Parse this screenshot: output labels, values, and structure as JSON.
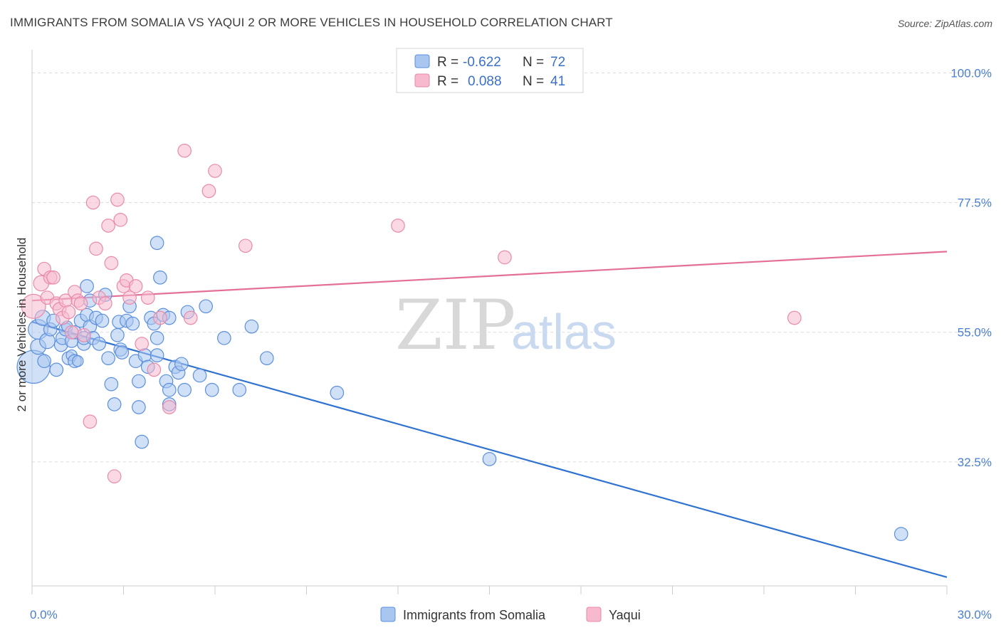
{
  "header": {
    "title": "IMMIGRANTS FROM SOMALIA VS YAQUI 2 OR MORE VEHICLES IN HOUSEHOLD CORRELATION CHART",
    "source": "Source: ZipAtlas.com"
  },
  "watermark": {
    "zip": "ZIP",
    "atlas": "atlas"
  },
  "legend_top": {
    "rows": [
      {
        "r_label": "R = ",
        "r_value": "-0.622",
        "n_label": "N = ",
        "n_value": "72",
        "color": "#a9c6f0"
      },
      {
        "r_label": "R = ",
        "r_value": "0.088",
        "n_label": "N = ",
        "n_value": "41",
        "color": "#f6b9cd"
      }
    ]
  },
  "chart_data": {
    "type": "scatter",
    "title": "IMMIGRANTS FROM SOMALIA VS YAQUI 2 OR MORE VEHICLES IN HOUSEHOLD CORRELATION CHART",
    "xlabel": "",
    "ylabel": "2 or more Vehicles in Household",
    "xlim": [
      0,
      30
    ],
    "ylim": [
      11,
      104
    ],
    "x_tick_labels": [
      {
        "value": 0,
        "label": "0.0%"
      },
      {
        "value": 30,
        "label": "30.0%"
      }
    ],
    "y_tick_labels": [
      {
        "value": 100,
        "label": "100.0%"
      },
      {
        "value": 77.5,
        "label": "77.5%"
      },
      {
        "value": 55,
        "label": "55.0%"
      },
      {
        "value": 32.5,
        "label": "32.5%"
      }
    ],
    "y_grid": [
      100,
      77.5,
      55,
      32.5
    ],
    "grid": true,
    "legend_position": "bottom",
    "series": [
      {
        "name": "Immigrants from Somalia",
        "color": "#5b8fdd",
        "fill": "#a9c6f0",
        "trend": {
          "x": [
            0,
            30
          ],
          "y": [
            56.8,
            12.5
          ],
          "color": "#2f72d0"
        },
        "points": [
          [
            0.05,
            49.0,
            30
          ],
          [
            0.2,
            55.5,
            18
          ],
          [
            0.35,
            57.5,
            14
          ],
          [
            0.2,
            52.5,
            14
          ],
          [
            0.4,
            50.0,
            12
          ],
          [
            0.5,
            53.5,
            14
          ],
          [
            0.6,
            55.5,
            12
          ],
          [
            0.7,
            57.0,
            12
          ],
          [
            0.8,
            48.5,
            12
          ],
          [
            0.95,
            52.8,
            12
          ],
          [
            1.0,
            54.0,
            12
          ],
          [
            1.1,
            55.5,
            12
          ],
          [
            1.15,
            56.0,
            10
          ],
          [
            1.2,
            50.5,
            12
          ],
          [
            1.3,
            53.5,
            12
          ],
          [
            1.3,
            51.0,
            10
          ],
          [
            1.4,
            50.0,
            12
          ],
          [
            1.4,
            55.0,
            12
          ],
          [
            1.5,
            50.0,
            10
          ],
          [
            1.6,
            57.0,
            12
          ],
          [
            1.7,
            53.0,
            12
          ],
          [
            1.7,
            54.0,
            12
          ],
          [
            1.8,
            63.0,
            12
          ],
          [
            1.8,
            58.0,
            12
          ],
          [
            1.9,
            60.5,
            12
          ],
          [
            1.9,
            56.0,
            12
          ],
          [
            2.0,
            54.0,
            12
          ],
          [
            2.1,
            57.5,
            12
          ],
          [
            2.2,
            53.0,
            12
          ],
          [
            2.3,
            57.0,
            12
          ],
          [
            2.4,
            61.5,
            12
          ],
          [
            2.5,
            50.5,
            12
          ],
          [
            2.6,
            46.0,
            12
          ],
          [
            2.7,
            42.5,
            12
          ],
          [
            2.8,
            54.5,
            12
          ],
          [
            2.85,
            56.8,
            12
          ],
          [
            2.9,
            52.0,
            12
          ],
          [
            2.95,
            51.5,
            12
          ],
          [
            3.1,
            57.0,
            12
          ],
          [
            3.2,
            59.5,
            12
          ],
          [
            3.3,
            56.5,
            12
          ],
          [
            3.4,
            50.0,
            12
          ],
          [
            3.5,
            46.5,
            12
          ],
          [
            3.5,
            42.0,
            12
          ],
          [
            3.6,
            36.0,
            12
          ],
          [
            3.7,
            51.0,
            12
          ],
          [
            3.8,
            49.0,
            12
          ],
          [
            3.9,
            57.5,
            12
          ],
          [
            4.0,
            56.5,
            12
          ],
          [
            4.1,
            54.0,
            12
          ],
          [
            4.1,
            51.0,
            12
          ],
          [
            4.1,
            70.5,
            12
          ],
          [
            4.2,
            64.5,
            12
          ],
          [
            4.3,
            58.0,
            12
          ],
          [
            4.4,
            46.5,
            12
          ],
          [
            4.5,
            45.0,
            12
          ],
          [
            4.5,
            57.5,
            12
          ],
          [
            4.5,
            42.5,
            12
          ],
          [
            4.7,
            49.0,
            12
          ],
          [
            4.8,
            48.0,
            12
          ],
          [
            4.9,
            49.5,
            12
          ],
          [
            5.0,
            45.0,
            12
          ],
          [
            5.1,
            58.5,
            12
          ],
          [
            5.5,
            47.5,
            12
          ],
          [
            5.7,
            59.5,
            12
          ],
          [
            5.9,
            45.0,
            12
          ],
          [
            6.3,
            54.0,
            12
          ],
          [
            6.8,
            45.0,
            12
          ],
          [
            7.2,
            56.0,
            12
          ],
          [
            7.7,
            50.5,
            12
          ],
          [
            10.0,
            44.5,
            12
          ],
          [
            15.0,
            33.0,
            12
          ],
          [
            28.5,
            20.0,
            12
          ]
        ]
      },
      {
        "name": "Yaqui",
        "color": "#e98aab",
        "fill": "#f6b9cd",
        "trend": {
          "x": [
            0,
            30
          ],
          "y": [
            60.5,
            69.0
          ],
          "color": "#e4709a"
        },
        "points": [
          [
            0.05,
            59.5,
            22
          ],
          [
            0.3,
            63.5,
            14
          ],
          [
            0.4,
            66.0,
            12
          ],
          [
            0.5,
            61.0,
            12
          ],
          [
            0.6,
            64.5,
            12
          ],
          [
            0.7,
            64.5,
            12
          ],
          [
            0.8,
            60.0,
            12
          ],
          [
            0.9,
            59.0,
            12
          ],
          [
            1.0,
            57.5,
            12
          ],
          [
            1.1,
            60.5,
            12
          ],
          [
            1.2,
            58.5,
            12
          ],
          [
            1.3,
            55.0,
            12
          ],
          [
            1.4,
            62.0,
            12
          ],
          [
            1.5,
            60.5,
            12
          ],
          [
            1.6,
            60.0,
            12
          ],
          [
            1.7,
            54.5,
            12
          ],
          [
            1.9,
            39.5,
            12
          ],
          [
            2.0,
            77.5,
            12
          ],
          [
            2.1,
            69.5,
            12
          ],
          [
            2.2,
            61.0,
            12
          ],
          [
            2.4,
            60.0,
            12
          ],
          [
            2.5,
            73.5,
            12
          ],
          [
            2.6,
            67.0,
            12
          ],
          [
            2.7,
            30.0,
            12
          ],
          [
            2.8,
            78.0,
            12
          ],
          [
            2.9,
            74.5,
            12
          ],
          [
            3.0,
            63.0,
            12
          ],
          [
            3.1,
            64.0,
            12
          ],
          [
            3.2,
            61.0,
            12
          ],
          [
            3.4,
            63.0,
            12
          ],
          [
            3.6,
            53.0,
            12
          ],
          [
            3.8,
            61.0,
            12
          ],
          [
            4.0,
            48.5,
            12
          ],
          [
            4.2,
            57.5,
            12
          ],
          [
            4.5,
            42.0,
            12
          ],
          [
            5.0,
            86.5,
            12
          ],
          [
            5.2,
            57.5,
            12
          ],
          [
            5.8,
            79.5,
            12
          ],
          [
            6.0,
            83.0,
            12
          ],
          [
            7.0,
            70.0,
            12
          ],
          [
            12.0,
            73.5,
            12
          ],
          [
            15.5,
            68.0,
            12
          ],
          [
            25.0,
            57.5,
            12
          ]
        ]
      }
    ]
  }
}
